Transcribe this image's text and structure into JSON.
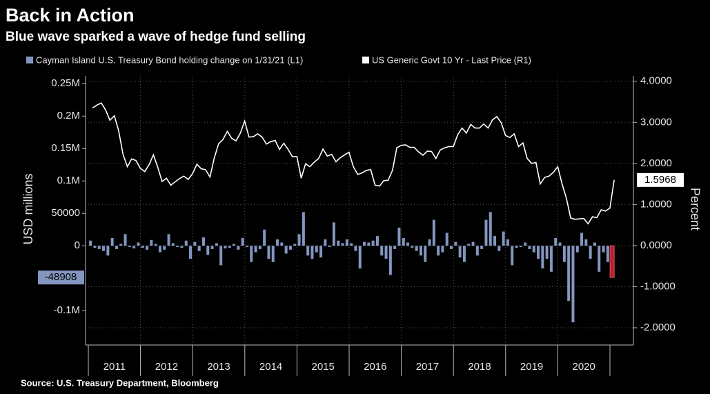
{
  "chart_data": {
    "type": "bar-line",
    "title": "Back in Action",
    "subtitle": "Blue wave sparked a wave of hedge fund selling",
    "ylabel": "USD millions",
    "y2label": "Percent",
    "source": "Source: U.S. Treasury Department, Bloomberg",
    "year_labels": [
      "2011",
      "2012",
      "2013",
      "2014",
      "2015",
      "2016",
      "2017",
      "2018",
      "2019",
      "2020"
    ],
    "ylim": [
      -153000,
      262000
    ],
    "yticks": [
      {
        "value": 250000,
        "label": "0.25M"
      },
      {
        "value": 200000,
        "label": "0.2M"
      },
      {
        "value": 150000,
        "label": "0.15M"
      },
      {
        "value": 100000,
        "label": "0.1M"
      },
      50000,
      0,
      {
        "value": -100000,
        "label": "-0.1M"
      }
    ],
    "y2lim": [
      -2.42,
      4.13
    ],
    "y2ticks": [
      {
        "value": 4,
        "label": "4.0000"
      },
      {
        "value": 3,
        "label": "3.0000"
      },
      {
        "value": 2,
        "label": "2.0000"
      },
      {
        "value": 1,
        "label": "1.0000"
      },
      {
        "value": 0,
        "label": "0.0000"
      },
      {
        "value": -1,
        "label": "-1.0000"
      },
      {
        "value": -2,
        "label": "-2.0000"
      }
    ],
    "grid": true,
    "series": [
      {
        "name": "Cayman Island U.S. Treasury Bond holding change on 1/31/21 (L1)",
        "type": "bar",
        "axis": "y",
        "color": "#8396bf",
        "last_color": "#b3202e",
        "values": [
          8000,
          -3000,
          -5000,
          -8000,
          -15000,
          12000,
          -5000,
          3000,
          18000,
          -2000,
          -4000,
          5000,
          -3000,
          -6000,
          9000,
          3000,
          -10000,
          -6000,
          18000,
          4000,
          -2000,
          -3000,
          8000,
          -20000,
          6000,
          -8000,
          13000,
          -14000,
          -5000,
          4000,
          -30000,
          -4000,
          -3000,
          3000,
          -6000,
          12000,
          -2000,
          -25000,
          -10000,
          -5000,
          25000,
          -20000,
          -25000,
          10000,
          5000,
          -12000,
          -6000,
          3000,
          18000,
          52000,
          -15000,
          -20000,
          -10000,
          -18000,
          10000,
          -2000,
          36000,
          8000,
          4000,
          10000,
          4000,
          -8000,
          -35000,
          6000,
          5000,
          8000,
          15000,
          -15000,
          -20000,
          -45000,
          -5000,
          28000,
          12000,
          5000,
          -3000,
          -8000,
          -15000,
          -25000,
          10000,
          40000,
          -15000,
          -10000,
          20000,
          -5000,
          6000,
          -18000,
          -25000,
          3000,
          6000,
          -15000,
          -5000,
          40000,
          52000,
          15000,
          -8000,
          22000,
          10000,
          -30000,
          -3000,
          -2000,
          5000,
          -5000,
          -10000,
          -20000,
          -35000,
          -20000,
          -40000,
          12000,
          5000,
          -25000,
          -85000,
          -118000,
          -10000,
          20000,
          10000,
          -20000,
          5000,
          -40000,
          -10000,
          -25000,
          -48908
        ]
      },
      {
        "name": "US Generic Govt 10 Yr - Last Price (R1)",
        "type": "line",
        "axis": "y2",
        "color": "#ffffff",
        "values": [
          3.35,
          3.42,
          3.47,
          3.3,
          3.05,
          3.16,
          2.8,
          2.22,
          1.92,
          2.11,
          2.07,
          1.88,
          1.8,
          1.97,
          2.21,
          1.91,
          1.56,
          1.64,
          1.47,
          1.55,
          1.63,
          1.69,
          1.61,
          1.75,
          1.98,
          1.87,
          1.85,
          1.67,
          2.13,
          2.48,
          2.58,
          2.78,
          2.61,
          2.55,
          2.74,
          3.03,
          2.64,
          2.65,
          2.72,
          2.64,
          2.47,
          2.53,
          2.56,
          2.34,
          2.49,
          2.34,
          2.16,
          2.17,
          1.64,
          1.99,
          1.92,
          2.03,
          2.12,
          2.35,
          2.18,
          2.22,
          2.04,
          2.14,
          2.21,
          2.27,
          1.92,
          1.73,
          1.77,
          1.83,
          1.85,
          1.47,
          1.45,
          1.58,
          1.59,
          1.83,
          2.38,
          2.44,
          2.45,
          2.39,
          2.39,
          2.28,
          2.2,
          2.3,
          2.29,
          2.12,
          2.33,
          2.38,
          2.41,
          2.41,
          2.7,
          2.86,
          2.74,
          2.95,
          2.86,
          2.86,
          2.96,
          2.86,
          3.06,
          3.14,
          2.99,
          2.68,
          2.63,
          2.72,
          2.41,
          2.5,
          2.12,
          2.0,
          2.02,
          1.5,
          1.66,
          1.69,
          1.78,
          1.92,
          1.51,
          1.15,
          0.67,
          0.64,
          0.65,
          0.66,
          0.53,
          0.7,
          0.68,
          0.87,
          0.84,
          0.91,
          1.5968
        ]
      }
    ]
  }
}
